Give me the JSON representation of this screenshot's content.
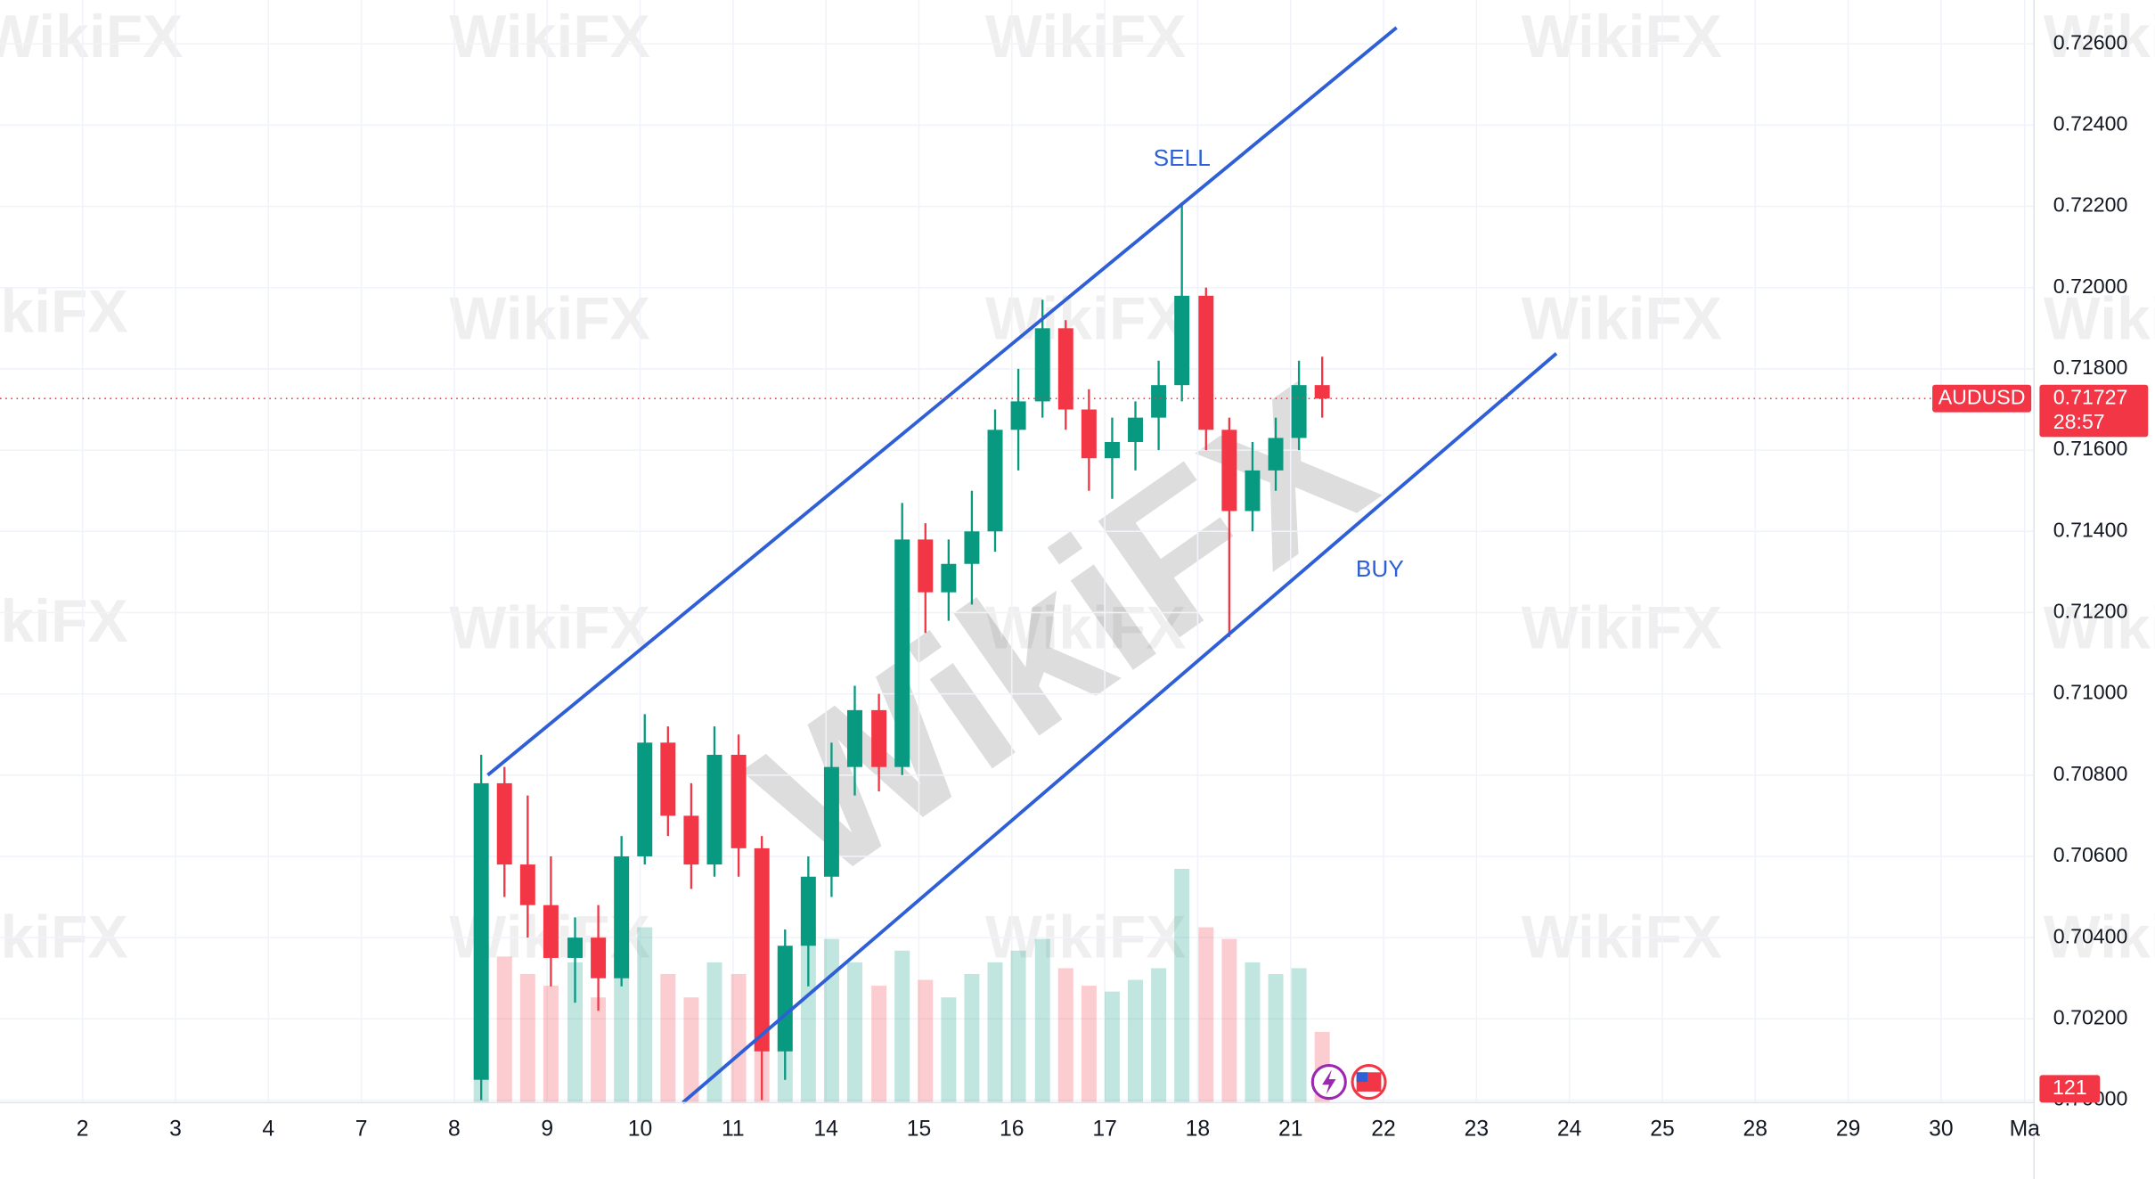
{
  "chart_data": {
    "type": "candlestick",
    "symbol": "AUDUSD",
    "countdown": "28:57",
    "watermark": "WikiFX",
    "x": [
      4.29,
      4.54,
      4.79,
      5.04,
      5.3,
      5.55,
      5.8,
      6.05,
      6.3,
      6.55,
      6.8,
      7.06,
      7.31,
      7.56,
      7.81,
      8.06,
      8.31,
      8.57,
      8.82,
      9.07,
      9.32,
      9.57,
      9.82,
      10.07,
      10.33,
      10.58,
      10.83,
      11.08,
      11.33,
      11.58,
      11.83,
      12.09,
      12.34,
      12.59,
      12.84,
      13.09,
      13.34
    ],
    "open": [
      0.7005,
      0.7078,
      0.7058,
      0.7048,
      0.7035,
      0.704,
      0.703,
      0.706,
      0.7088,
      0.707,
      0.7058,
      0.7085,
      0.7062,
      0.7012,
      0.7038,
      0.7055,
      0.7082,
      0.7096,
      0.7082,
      0.7138,
      0.7125,
      0.7132,
      0.714,
      0.7165,
      0.7172,
      0.719,
      0.717,
      0.7158,
      0.7162,
      0.7168,
      0.7176,
      0.7198,
      0.7165,
      0.7145,
      0.7155,
      0.7163,
      0.7176
    ],
    "high": [
      0.7085,
      0.7082,
      0.7075,
      0.706,
      0.7045,
      0.7048,
      0.7065,
      0.7095,
      0.7092,
      0.7078,
      0.7092,
      0.709,
      0.7065,
      0.7042,
      0.706,
      0.7088,
      0.7102,
      0.71,
      0.7147,
      0.7142,
      0.7138,
      0.715,
      0.717,
      0.718,
      0.7197,
      0.7192,
      0.7175,
      0.7168,
      0.7172,
      0.7182,
      0.7221,
      0.72,
      0.7168,
      0.7162,
      0.7168,
      0.7182,
      0.7183
    ],
    "low": [
      0.7,
      0.705,
      0.704,
      0.7028,
      0.7024,
      0.7022,
      0.7028,
      0.7058,
      0.7065,
      0.7052,
      0.7055,
      0.7055,
      0.7,
      0.7005,
      0.7028,
      0.705,
      0.7075,
      0.7076,
      0.708,
      0.7115,
      0.7118,
      0.7122,
      0.7135,
      0.7155,
      0.7168,
      0.7165,
      0.715,
      0.7148,
      0.7155,
      0.716,
      0.7172,
      0.716,
      0.7114,
      0.714,
      0.715,
      0.716,
      0.7168
    ],
    "close": [
      0.7078,
      0.7058,
      0.7048,
      0.7035,
      0.704,
      0.703,
      0.706,
      0.7088,
      0.707,
      0.7058,
      0.7085,
      0.7062,
      0.7012,
      0.7038,
      0.7055,
      0.7082,
      0.7096,
      0.7082,
      0.7138,
      0.7125,
      0.7132,
      0.714,
      0.7165,
      0.7172,
      0.719,
      0.717,
      0.7158,
      0.7162,
      0.7168,
      0.7176,
      0.7198,
      0.7165,
      0.7145,
      0.7155,
      0.7163,
      0.7176,
      0.71727
    ],
    "volume": [
      380,
      250,
      220,
      200,
      240,
      180,
      260,
      300,
      220,
      180,
      240,
      220,
      340,
      260,
      300,
      280,
      240,
      200,
      260,
      210,
      180,
      220,
      240,
      260,
      280,
      230,
      200,
      190,
      210,
      230,
      400,
      300,
      280,
      240,
      220,
      230,
      121
    ],
    "last_price": 0.71727,
    "up_color": "#089981",
    "down_color": "#f23645",
    "xlim": [
      -0.888,
      21.0
    ],
    "xticks": [
      {
        "value": 0,
        "label": "2"
      },
      {
        "value": 1,
        "label": "3"
      },
      {
        "value": 2,
        "label": "4"
      },
      {
        "value": 3,
        "label": "7"
      },
      {
        "value": 4,
        "label": "8"
      },
      {
        "value": 5,
        "label": "9"
      },
      {
        "value": 6,
        "label": "10"
      },
      {
        "value": 7,
        "label": "11"
      },
      {
        "value": 8,
        "label": "14"
      },
      {
        "value": 9,
        "label": "15"
      },
      {
        "value": 10,
        "label": "16"
      },
      {
        "value": 11,
        "label": "17"
      },
      {
        "value": 12,
        "label": "18"
      },
      {
        "value": 13,
        "label": "21"
      },
      {
        "value": 14,
        "label": "22"
      },
      {
        "value": 15,
        "label": "23"
      },
      {
        "value": 16,
        "label": "24"
      },
      {
        "value": 17,
        "label": "25"
      },
      {
        "value": 18,
        "label": "28"
      },
      {
        "value": 19,
        "label": "29"
      },
      {
        "value": 20,
        "label": "30"
      },
      {
        "value": 20.9,
        "label": "Ma"
      }
    ],
    "ylim": [
      0.69994,
      0.72708
    ],
    "yticks": [
      {
        "value": 0.7,
        "label": "0.70000"
      },
      {
        "value": 0.702,
        "label": "0.70200"
      },
      {
        "value": 0.704,
        "label": "0.70400"
      },
      {
        "value": 0.706,
        "label": "0.70600"
      },
      {
        "value": 0.708,
        "label": "0.70800"
      },
      {
        "value": 0.71,
        "label": "0.71000"
      },
      {
        "value": 0.712,
        "label": "0.71200"
      },
      {
        "value": 0.714,
        "label": "0.71400"
      },
      {
        "value": 0.716,
        "label": "0.71600"
      },
      {
        "value": 0.718,
        "label": "0.71800"
      },
      {
        "value": 0.72,
        "label": "0.72000"
      },
      {
        "value": 0.722,
        "label": "0.72200"
      },
      {
        "value": 0.724,
        "label": "0.72400"
      },
      {
        "value": 0.726,
        "label": "0.72600"
      }
    ],
    "grid": true,
    "trendlines": [
      {
        "label": "SELL",
        "color": "#2f5fd6",
        "points": [
          [
            4.36,
            0.708
          ],
          [
            14.14,
            0.7264
          ]
        ]
      },
      {
        "label": "BUY",
        "color": "#2f5fd6",
        "points": [
          [
            6.46,
            0.69994
          ],
          [
            15.86,
            0.71838
          ]
        ]
      }
    ]
  }
}
